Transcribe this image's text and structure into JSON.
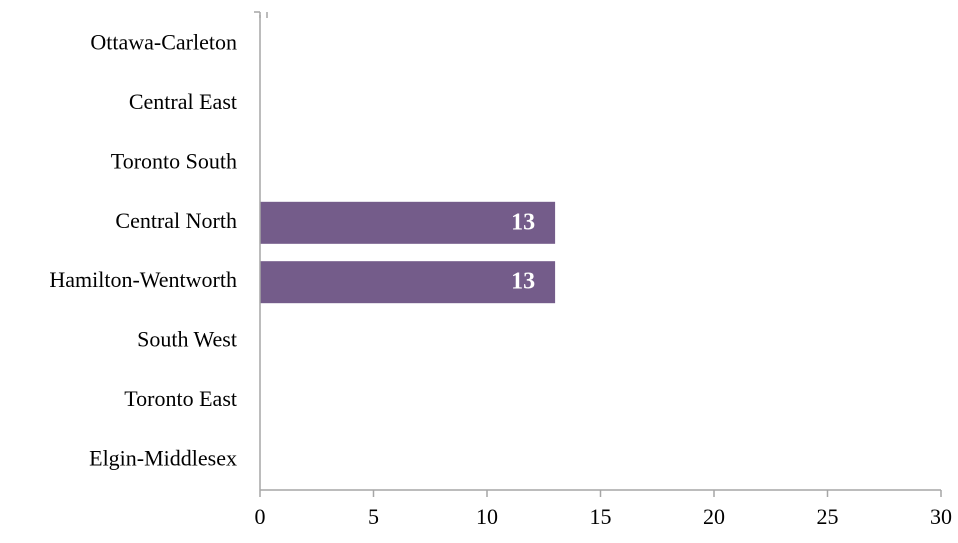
{
  "chart_data": {
    "type": "bar",
    "orientation": "horizontal",
    "categories": [
      "Ottawa-Carleton",
      "Central East",
      "Toronto South",
      "Central North",
      "Hamilton-Wentworth",
      "South West",
      "Toronto East",
      "Elgin-Middlesex"
    ],
    "values": [
      null,
      null,
      null,
      13,
      13,
      null,
      null,
      null
    ],
    "data_labels": [
      "",
      "",
      "",
      "13",
      "13",
      "",
      "",
      ""
    ],
    "xlim": [
      0,
      30
    ],
    "xticks": [
      0,
      5,
      10,
      15,
      20,
      25,
      30
    ],
    "xtick_labels": [
      "0",
      "5",
      "10",
      "15",
      "20",
      "25",
      "30"
    ],
    "title": "",
    "xlabel": "",
    "ylabel": "",
    "grid": false,
    "legend": "none",
    "bar_color": "#745c8a",
    "axis_color": "#a6a6a6"
  }
}
